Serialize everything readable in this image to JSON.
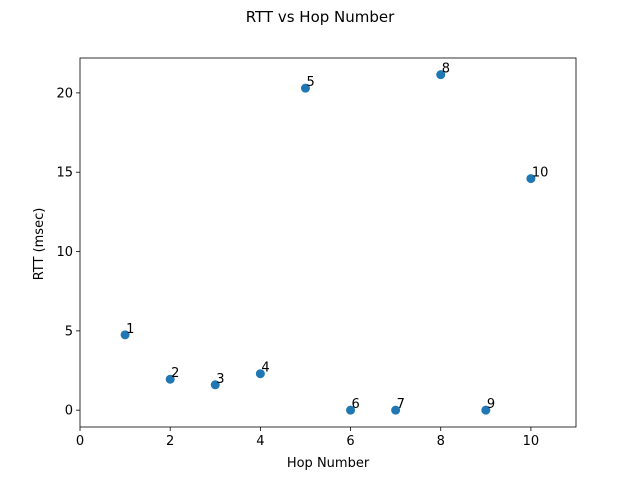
{
  "chart_data": {
    "type": "scatter",
    "title": "RTT vs Hop Number",
    "xlabel": "Hop Number",
    "ylabel": "RTT (msec)",
    "xlim": [
      0,
      11
    ],
    "ylim": [
      -1.06,
      22.2
    ],
    "xticks": [
      0,
      2,
      4,
      6,
      8,
      10
    ],
    "yticks": [
      0,
      5,
      10,
      15,
      20
    ],
    "grid": false,
    "legend": false,
    "point_color": "#1f77b4",
    "series": [
      {
        "points": [
          {
            "x": 1,
            "y": 4.75,
            "label": "1"
          },
          {
            "x": 2,
            "y": 1.95,
            "label": "2"
          },
          {
            "x": 3,
            "y": 1.6,
            "label": "3"
          },
          {
            "x": 4,
            "y": 2.3,
            "label": "4"
          },
          {
            "x": 5,
            "y": 20.3,
            "label": "5"
          },
          {
            "x": 6,
            "y": 0.0,
            "label": "6"
          },
          {
            "x": 7,
            "y": 0.0,
            "label": "7"
          },
          {
            "x": 8,
            "y": 21.15,
            "label": "8"
          },
          {
            "x": 9,
            "y": 0.0,
            "label": "9"
          },
          {
            "x": 10,
            "y": 14.6,
            "label": "10"
          }
        ]
      }
    ]
  }
}
